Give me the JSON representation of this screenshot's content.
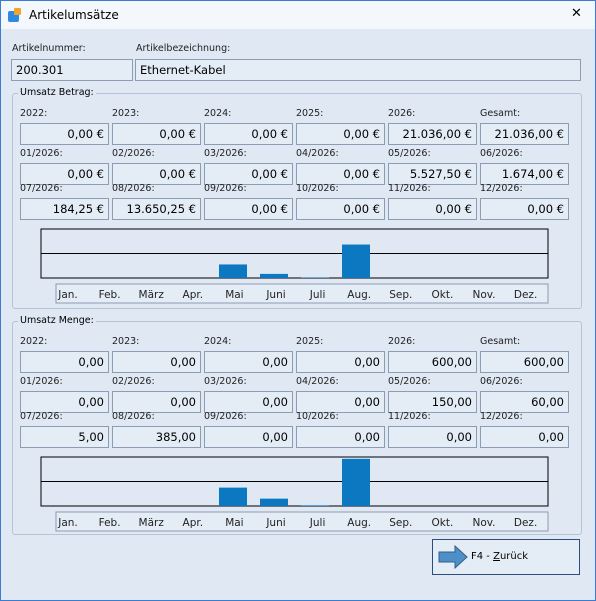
{
  "window": {
    "title": "Artikelumsätze",
    "close": "✕"
  },
  "article": {
    "number_label": "Artikelnummer:",
    "number": "200.301",
    "name_label": "Artikelbezeichnung:",
    "name": "Ethernet-Kabel"
  },
  "revenue": {
    "title": "Umsatz Betrag:",
    "years": [
      {
        "label": "2022:",
        "text": "0,00 €"
      },
      {
        "label": "2023:",
        "text": "0,00 €"
      },
      {
        "label": "2024:",
        "text": "0,00 €"
      },
      {
        "label": "2025:",
        "text": "0,00 €"
      },
      {
        "label": "2026:",
        "text": "21.036,00 €"
      },
      {
        "label": "Gesamt:",
        "text": "21.036,00 €"
      }
    ],
    "months": [
      {
        "label": "01/2026:",
        "value": 0,
        "text": "0,00 €"
      },
      {
        "label": "02/2026:",
        "value": 0,
        "text": "0,00 €"
      },
      {
        "label": "03/2026:",
        "value": 0,
        "text": "0,00 €"
      },
      {
        "label": "04/2026:",
        "value": 0,
        "text": "0,00 €"
      },
      {
        "label": "05/2026:",
        "value": 5527.5,
        "text": "5.527,50 €"
      },
      {
        "label": "06/2026:",
        "value": 1674,
        "text": "1.674,00 €"
      },
      {
        "label": "07/2026:",
        "value": 184.25,
        "text": "184,25 €"
      },
      {
        "label": "08/2026:",
        "value": 13650.25,
        "text": "13.650,25 €"
      },
      {
        "label": "09/2026:",
        "value": 0,
        "text": "0,00 €"
      },
      {
        "label": "10/2026:",
        "value": 0,
        "text": "0,00 €"
      },
      {
        "label": "11/2026:",
        "value": 0,
        "text": "0,00 €"
      },
      {
        "label": "12/2026:",
        "value": 0,
        "text": "0,00 €"
      }
    ],
    "chart": {
      "type": "bar",
      "color": "#0d78c2",
      "ylim": [
        0,
        20000
      ],
      "categories": [
        "Jan.",
        "Feb.",
        "März",
        "Apr.",
        "Mai",
        "Juni",
        "Juli",
        "Aug.",
        "Sep.",
        "Okt.",
        "Nov.",
        "Dez."
      ]
    }
  },
  "quantity": {
    "title": "Umsatz Menge:",
    "years": [
      {
        "label": "2022:",
        "text": "0,00"
      },
      {
        "label": "2023:",
        "text": "0,00"
      },
      {
        "label": "2024:",
        "text": "0,00"
      },
      {
        "label": "2025:",
        "text": "0,00"
      },
      {
        "label": "2026:",
        "text": "600,00"
      },
      {
        "label": "Gesamt:",
        "text": "600,00"
      }
    ],
    "months": [
      {
        "label": "01/2026:",
        "value": 0,
        "text": "0,00"
      },
      {
        "label": "02/2026:",
        "value": 0,
        "text": "0,00"
      },
      {
        "label": "03/2026:",
        "value": 0,
        "text": "0,00"
      },
      {
        "label": "04/2026:",
        "value": 0,
        "text": "0,00"
      },
      {
        "label": "05/2026:",
        "value": 150,
        "text": "150,00"
      },
      {
        "label": "06/2026:",
        "value": 60,
        "text": "60,00"
      },
      {
        "label": "07/2026:",
        "value": 5,
        "text": "5,00"
      },
      {
        "label": "08/2026:",
        "value": 385,
        "text": "385,00"
      },
      {
        "label": "09/2026:",
        "value": 0,
        "text": "0,00"
      },
      {
        "label": "10/2026:",
        "value": 0,
        "text": "0,00"
      },
      {
        "label": "11/2026:",
        "value": 0,
        "text": "0,00"
      },
      {
        "label": "12/2026:",
        "value": 0,
        "text": "0,00"
      }
    ],
    "chart": {
      "type": "bar",
      "color": "#0d78c2",
      "ylim": [
        0,
        400
      ],
      "categories": [
        "Jan.",
        "Feb.",
        "März",
        "Apr.",
        "Mai",
        "Juni",
        "Juli",
        "Aug.",
        "Sep.",
        "Okt.",
        "Nov.",
        "Dez."
      ]
    }
  },
  "button": {
    "label_parts": [
      "F4 - ",
      "Z",
      "urück"
    ]
  }
}
